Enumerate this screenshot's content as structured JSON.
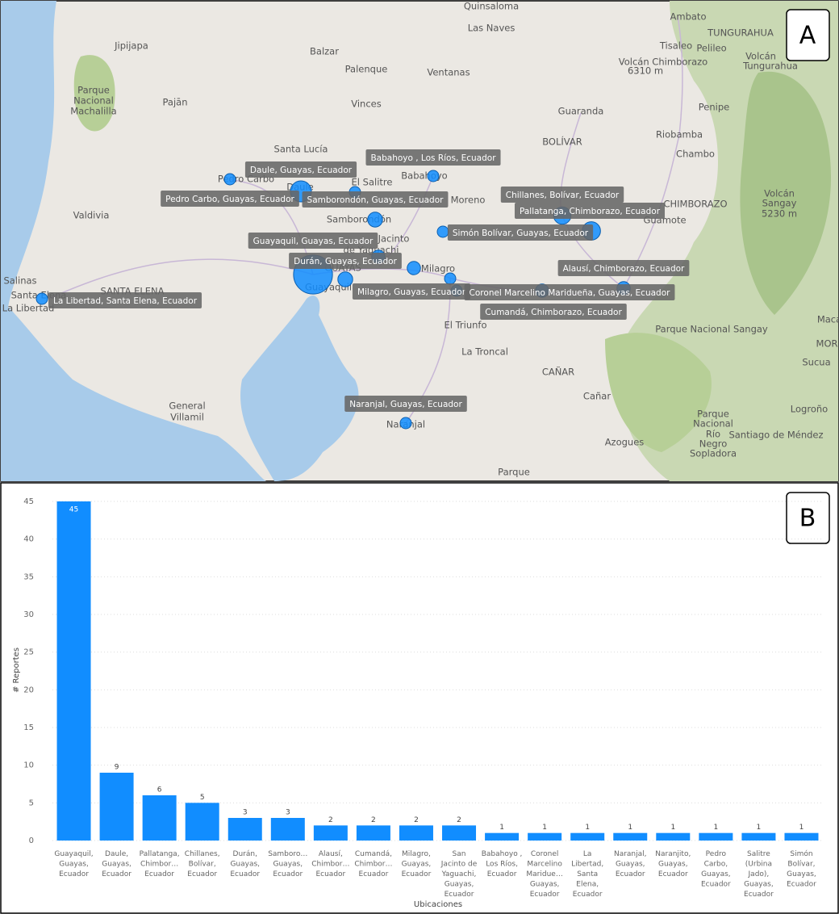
{
  "map": {
    "panel_label": "A",
    "place_labels": [
      "Quinsaloma",
      "Las Naves",
      "Ambato",
      "TUNGURAHUA",
      "Jipijapa",
      "Balzar",
      "Tisaleo",
      "Pelileo",
      "Volcán Chimborazo",
      "6310 m",
      "Volcán",
      "Tungurahua",
      "Palenque",
      "Ventanas",
      "Parque",
      "Nacional",
      "Machalilla",
      "Pajān",
      "Vinces",
      "Guaranda",
      "Penipe",
      "Riobamba",
      "BOLÍVAR",
      "Chambo",
      "Santa Lucía",
      "El Salitre",
      "Moreno",
      "CHIMBORAZO",
      "Volcán",
      "Sangay",
      "5230 m",
      "Guamote",
      "Valdivia",
      "Jacinto",
      "de Yaguachi",
      "Milagro",
      "Salinas",
      "SANTA ELENA",
      "GUAYAS",
      "Guayaquil",
      "El Triunfo",
      "Parque Nacional Sangay",
      "Maca",
      "MOR",
      "La Troncal",
      "Sucua",
      "CAÑAR",
      "Cañar",
      "General",
      "Villamil",
      "Logroño",
      "Azogues",
      "Parque",
      "Nacional",
      "Río",
      "Negro",
      "Sopladora",
      "Santiago de Méndez",
      "Parque",
      "Pedro Carbo",
      "Daule",
      "Babahoyo",
      "Samborondón",
      "Naranjal",
      "La Libertad",
      "Santa Elena"
    ],
    "location_labels": [
      "Babahoyo , Los Ríos, Ecuador",
      "Daule, Guayas, Ecuador",
      "Pedro Carbo, Guayas, Ecuador",
      "Samborondón, Guayas, Ecuador",
      "Chillanes, Bolívar, Ecuador",
      "Pallatanga, Chimborazo, Ecuador",
      "Simón Bolívar, Guayas, Ecuador",
      "Guayaquil, Guayas, Ecuador",
      "Durán, Guayas, Ecuador",
      "Alausí, Chimborazo, Ecuador",
      "Milagro, Guayas, Ecuador",
      "Coronel Marcelino Maridueña, Guayas, Ecuador",
      "Cumandá, Chimborazo, Ecuador",
      "La Libertad, Santa Elena, Ecuador",
      "Naranjal, Guayas, Ecuador"
    ]
  },
  "chart_data": {
    "type": "bar",
    "panel_label": "B",
    "x_label": "Ubicaciones",
    "y_label": "# Reportes",
    "categories": [
      "Guayaquil, Guayas, Ecuador",
      "Daule, Guayas, Ecuador",
      "Pallatanga, Chimbor… Ecuador",
      "Chillanes, Bolívar, Ecuador",
      "Durán, Guayas, Ecuador",
      "Samboro… Guayas, Ecuador",
      "Alausí, Chimbor… Ecuador",
      "Cumandá, Chimbor… Ecuador",
      "Milagro, Guayas, Ecuador",
      "San Jacinto de Yaguachi, Guayas, Ecuador",
      "Babahoyo , Los Ríos, Ecuador",
      "Coronel Marcelino Maridue… Guayas, Ecuador",
      "La Libertad, Santa Elena, Ecuador",
      "Naranjal, Guayas, Ecuador",
      "Naranjito, Guayas, Ecuador",
      "Pedro Carbo, Guayas, Ecuador",
      "Salitre (Urbina Jado), Guayas, Ecuador",
      "Simón Bolívar, Guayas, Ecuador"
    ],
    "values": [
      45,
      9,
      6,
      5,
      3,
      3,
      2,
      2,
      2,
      2,
      1,
      1,
      1,
      1,
      1,
      1,
      1,
      1
    ],
    "color": "#118dff",
    "ylim": [
      0,
      45
    ],
    "yticks": [
      0,
      5,
      10,
      15,
      20,
      25,
      30,
      35,
      40,
      45
    ],
    "grid": true
  }
}
